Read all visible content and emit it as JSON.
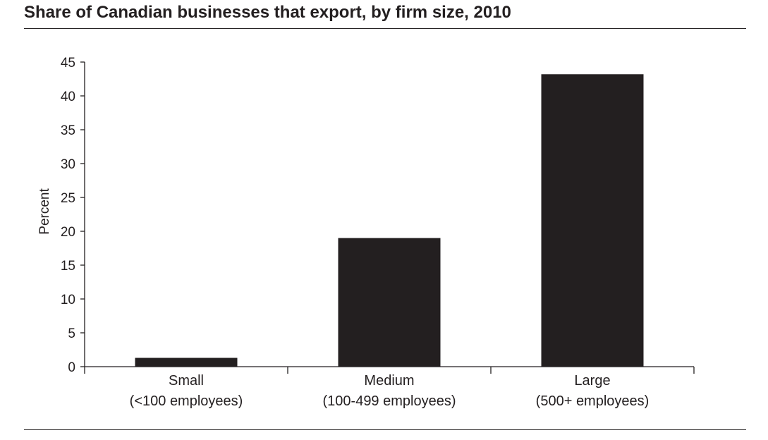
{
  "header": {
    "title": "Share of Canadian businesses that export, by firm size, 2010"
  },
  "chart_data": {
    "type": "bar",
    "title": "Share of Canadian businesses that export, by firm size, 2010",
    "xlabel": "",
    "ylabel": "Percent",
    "ylim": [
      0,
      45
    ],
    "yticks": [
      0,
      5,
      10,
      15,
      20,
      25,
      30,
      35,
      40,
      45
    ],
    "grid": false,
    "categories": [
      {
        "line1": "Small",
        "line2": "(<100 employees)"
      },
      {
        "line1": "Medium",
        "line2": "(100-499 employees)"
      },
      {
        "line1": "Large",
        "line2": "(500+ employees)"
      }
    ],
    "values": [
      1.3,
      19,
      43.2
    ],
    "bar_color": "#231f20",
    "axis_color": "#231f20"
  }
}
